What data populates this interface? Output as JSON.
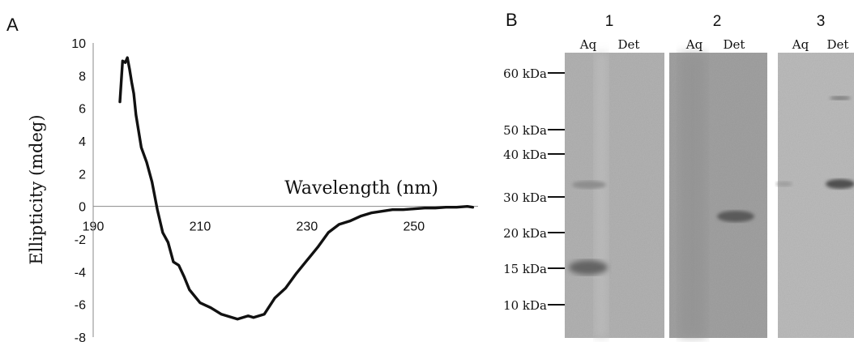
{
  "panel_a": {
    "label": "A",
    "chart_data": {
      "type": "line",
      "xlabel": "Wavelength (nm)",
      "ylabel": "Ellipticity (mdeg)",
      "xlim": [
        190,
        262
      ],
      "ylim": [
        -8,
        10
      ],
      "x_ticks": [
        "190",
        "210",
        "230",
        "250"
      ],
      "y_ticks": [
        "10",
        "8",
        "6",
        "4",
        "2",
        "0",
        "-2",
        "-4",
        "-6",
        "-8"
      ],
      "grid": false,
      "series": [
        {
          "x": [
            195,
            195.5,
            196,
            196.4,
            196.8,
            197.2,
            197.6,
            198,
            199,
            200,
            201,
            202,
            203,
            204,
            205,
            206,
            207,
            208,
            210,
            212,
            214,
            216,
            217,
            218,
            219,
            220,
            222,
            224,
            226,
            228,
            230,
            232,
            234,
            236,
            238,
            240,
            242,
            244,
            246,
            248,
            250,
            252,
            254,
            256,
            258,
            260,
            261
          ],
          "y": [
            6.4,
            8.9,
            8.8,
            9.1,
            8.4,
            7.6,
            6.9,
            5.6,
            3.6,
            2.7,
            1.5,
            -0.2,
            -1.6,
            -2.2,
            -3.4,
            -3.6,
            -4.3,
            -5.1,
            -5.9,
            -6.2,
            -6.6,
            -6.8,
            -6.9,
            -6.8,
            -6.7,
            -6.8,
            -6.6,
            -5.6,
            -5.0,
            -4.1,
            -3.3,
            -2.5,
            -1.6,
            -1.1,
            -0.9,
            -0.6,
            -0.4,
            -0.3,
            -0.2,
            -0.2,
            -0.15,
            -0.1,
            -0.1,
            -0.05,
            -0.05,
            0,
            -0.05
          ]
        }
      ]
    }
  },
  "panel_b": {
    "label": "B",
    "marker_labels": [
      "60 kDa",
      "50 kDa",
      "40 kDa",
      "30 kDa",
      "20 kDa",
      "15 kDa",
      "10 kDa"
    ],
    "marker_kda": [
      60,
      50,
      40,
      30,
      20,
      15,
      10
    ],
    "gels": [
      {
        "number": "1",
        "lanes": [
          "Aq",
          "Det"
        ]
      },
      {
        "number": "2",
        "lanes": [
          "Aq",
          "Det"
        ]
      },
      {
        "number": "3",
        "lanes": [
          "Aq",
          "Det"
        ]
      }
    ]
  }
}
